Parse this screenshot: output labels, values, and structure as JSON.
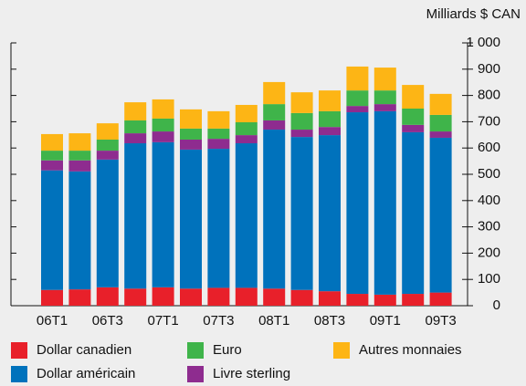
{
  "chart_data": {
    "type": "stacked_bar",
    "y_axis_label": "Milliards $ CAN",
    "categories": [
      "06T1",
      null,
      "06T3",
      null,
      "07T1",
      null,
      "07T3",
      null,
      "08T1",
      null,
      "08T3",
      null,
      "09T1",
      null,
      "09T3"
    ],
    "series": [
      {
        "name": "Dollar canadien",
        "color": "#e8202a",
        "values": [
          60,
          62,
          70,
          65,
          70,
          65,
          68,
          68,
          65,
          60,
          55,
          45,
          42,
          45,
          50
        ]
      },
      {
        "name": "Dollar américain",
        "color": "#0072bc",
        "values": [
          455,
          449,
          486,
          553,
          552,
          529,
          529,
          550,
          605,
          582,
          594,
          691,
          698,
          615,
          589
        ]
      },
      {
        "name": "Livre sterling",
        "color": "#8e2c8f",
        "values": [
          38,
          42,
          34,
          38,
          41,
          38,
          38,
          31,
          35,
          28,
          31,
          24,
          27,
          28,
          24
        ]
      },
      {
        "name": "Euro",
        "color": "#3fb44a",
        "values": [
          37,
          37,
          42,
          49,
          49,
          42,
          39,
          49,
          62,
          63,
          60,
          59,
          52,
          62,
          63
        ]
      },
      {
        "name": "Autres monnaies",
        "color": "#fdb515",
        "values": [
          63,
          66,
          62,
          69,
          73,
          73,
          66,
          66,
          84,
          79,
          79,
          91,
          87,
          90,
          80
        ]
      }
    ],
    "ylim": [
      0,
      1000
    ],
    "yticks": [
      0,
      100,
      200,
      300,
      400,
      500,
      600,
      700,
      800,
      900,
      {
        "value": 1000,
        "label": "1 000"
      }
    ]
  }
}
